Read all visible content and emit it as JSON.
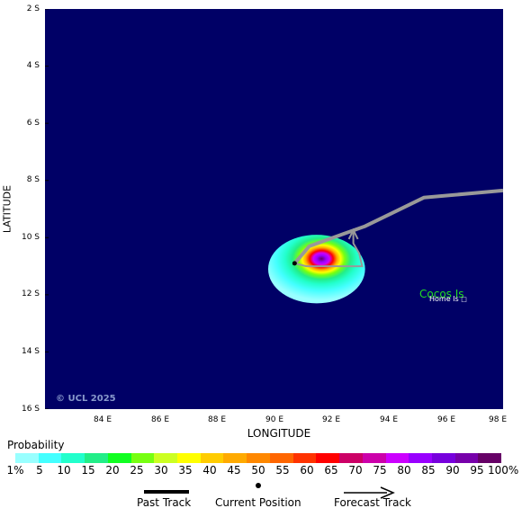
{
  "chart": {
    "y_ticks": [
      "2 S",
      "4 S",
      "6 S",
      "8 S",
      "10 S",
      "12 S",
      "14 S",
      "16 S"
    ],
    "x_ticks": [
      "84 E",
      "86 E",
      "88 E",
      "90 E",
      "92 E",
      "94 E",
      "96 E",
      "98 E"
    ],
    "ylabel": "LATITUDE",
    "xlabel": "LONGITUDE",
    "copyright": "© UCL 2025",
    "place_name": "Cocos Is",
    "place_sub": "Home Is"
  },
  "chart_data": {
    "type": "map",
    "lon_range_E": [
      82.4,
      98.0
    ],
    "lat_range_S": [
      2,
      16
    ],
    "past_track": [
      [
        98.0,
        8.35
      ],
      [
        95.3,
        8.6
      ],
      [
        94.2,
        9.15
      ],
      [
        93.3,
        9.6
      ],
      [
        91.4,
        10.3
      ],
      [
        90.9,
        10.9
      ]
    ],
    "current_position": [
      90.9,
      10.9
    ],
    "forecast_track": [
      [
        90.9,
        10.9
      ],
      [
        91.3,
        11.0
      ],
      [
        93.2,
        11.0
      ],
      [
        93.1,
        10.55
      ],
      [
        92.9,
        10.2
      ],
      [
        92.9,
        9.8
      ]
    ],
    "strike_probability_field": {
      "center": [
        91.5,
        10.6
      ],
      "peak_percent": 100,
      "extent_lon": [
        90.0,
        93.3
      ],
      "extent_lat_S": [
        9.9,
        12.3
      ]
    }
  },
  "legend": {
    "title": "Probability",
    "ticks": [
      "1%",
      "5",
      "10",
      "15",
      "20",
      "25",
      "30",
      "35",
      "40",
      "45",
      "50",
      "55",
      "60",
      "65",
      "70",
      "75",
      "80",
      "85",
      "90",
      "95",
      "100%"
    ],
    "colors": [
      "#99ffff",
      "#44ffff",
      "#22ffcc",
      "#22ee88",
      "#11ff22",
      "#77ff11",
      "#ccff22",
      "#ffff00",
      "#ffcc00",
      "#ffaa00",
      "#ff8800",
      "#ff6600",
      "#ff3300",
      "#ff0000",
      "#cc0066",
      "#cc00aa",
      "#cc00ff",
      "#9900ff",
      "#7700dd",
      "#7700aa",
      "#660066"
    ],
    "past_track_label": "Past Track",
    "current_position_label": "Current Position",
    "forecast_track_label": "Forecast Track"
  }
}
